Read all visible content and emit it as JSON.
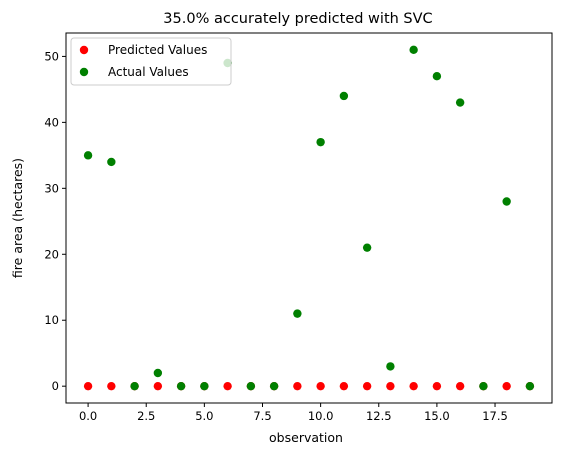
{
  "chart_data": {
    "type": "scatter",
    "title": "35.0% accurately predicted with SVC",
    "xlabel": "observation",
    "ylabel": "fire area (hectares)",
    "xlim": [
      -0.95,
      19.95
    ],
    "ylim": [
      -2.55,
      53.55
    ],
    "xticks": [
      0,
      2.5,
      5,
      7.5,
      10,
      12.5,
      15,
      17.5
    ],
    "xtick_labels": [
      "0.0",
      "2.5",
      "5.0",
      "7.5",
      "10.0",
      "12.5",
      "15.0",
      "17.5"
    ],
    "yticks": [
      0,
      10,
      20,
      30,
      40,
      50
    ],
    "ytick_labels": [
      "0",
      "10",
      "20",
      "30",
      "40",
      "50"
    ],
    "grid": false,
    "legend_position": "top-left",
    "series": [
      {
        "name": "Predicted Values",
        "color": "#ff0000",
        "x": [
          0,
          1,
          2,
          3,
          4,
          5,
          6,
          7,
          8,
          9,
          10,
          11,
          12,
          13,
          14,
          15,
          16,
          17,
          18,
          19
        ],
        "y": [
          0,
          0,
          0,
          0,
          0,
          0,
          0,
          0,
          0,
          0,
          0,
          0,
          0,
          0,
          0,
          0,
          0,
          0,
          0,
          0
        ]
      },
      {
        "name": "Actual Values",
        "color": "#008000",
        "x": [
          0,
          1,
          2,
          3,
          4,
          5,
          6,
          7,
          8,
          9,
          10,
          11,
          12,
          13,
          14,
          15,
          16,
          17,
          18,
          19
        ],
        "y": [
          35,
          34,
          0,
          2,
          0,
          0,
          49,
          0,
          0,
          11,
          37,
          44,
          21,
          3,
          51,
          47,
          43,
          0,
          28,
          0
        ]
      }
    ]
  }
}
